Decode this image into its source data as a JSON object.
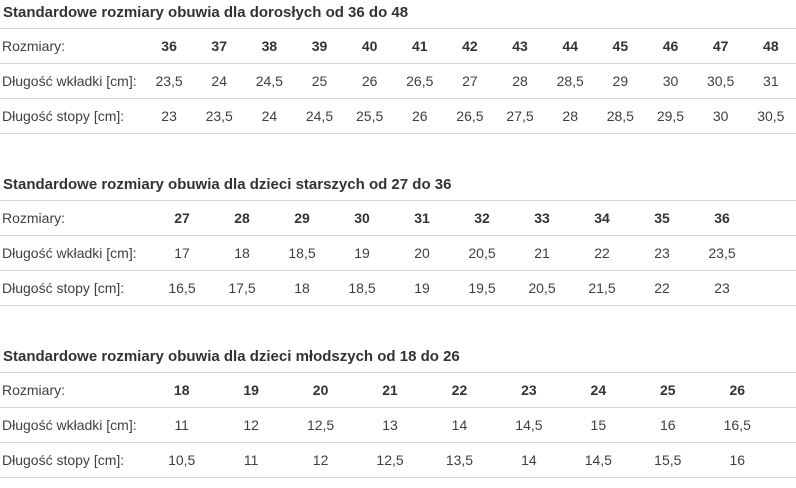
{
  "colors": {
    "background": "#ffffff",
    "title_text": "#333333",
    "body_text": "#3f3f3f",
    "row_border": "#d8d8d8"
  },
  "row_labels": {
    "sizes": "Rozmiary:",
    "insole": "Długość wkładki [cm]:",
    "foot": "Długość stopy [cm]:"
  },
  "tables": [
    {
      "title": "Standardowe rozmiary obuwia dla dorosłych od 36 do 48",
      "sizes": [
        "36",
        "37",
        "38",
        "39",
        "40",
        "41",
        "42",
        "43",
        "44",
        "45",
        "46",
        "47",
        "48"
      ],
      "insole_cm": [
        "23,5",
        "24",
        "24,5",
        "25",
        "26",
        "26,5",
        "27",
        "28",
        "28,5",
        "29",
        "30",
        "30,5",
        "31"
      ],
      "foot_cm": [
        "23",
        "23,5",
        "24",
        "24,5",
        "25,5",
        "26",
        "26,5",
        "27,5",
        "28",
        "28,5",
        "29,5",
        "30",
        "30,5"
      ]
    },
    {
      "title": "Standardowe rozmiary obuwia dla dzieci starszych od 27 do 36",
      "sizes": [
        "27",
        "28",
        "29",
        "30",
        "31",
        "32",
        "33",
        "34",
        "35",
        "36"
      ],
      "insole_cm": [
        "17",
        "18",
        "18,5",
        "19",
        "20",
        "20,5",
        "21",
        "22",
        "23",
        "23,5"
      ],
      "foot_cm": [
        "16,5",
        "17,5",
        "18",
        "18,5",
        "19",
        "19,5",
        "20,5",
        "21,5",
        "22",
        "23"
      ]
    },
    {
      "title": "Standardowe rozmiary obuwia dla dzieci młodszych od 18 do 26",
      "sizes": [
        "18",
        "19",
        "20",
        "21",
        "22",
        "23",
        "24",
        "25",
        "26"
      ],
      "insole_cm": [
        "11",
        "12",
        "12,5",
        "13",
        "14",
        "14,5",
        "15",
        "16",
        "16,5"
      ],
      "foot_cm": [
        "10,5",
        "11",
        "12",
        "12,5",
        "13,5",
        "14",
        "14,5",
        "15,5",
        "16"
      ]
    }
  ]
}
